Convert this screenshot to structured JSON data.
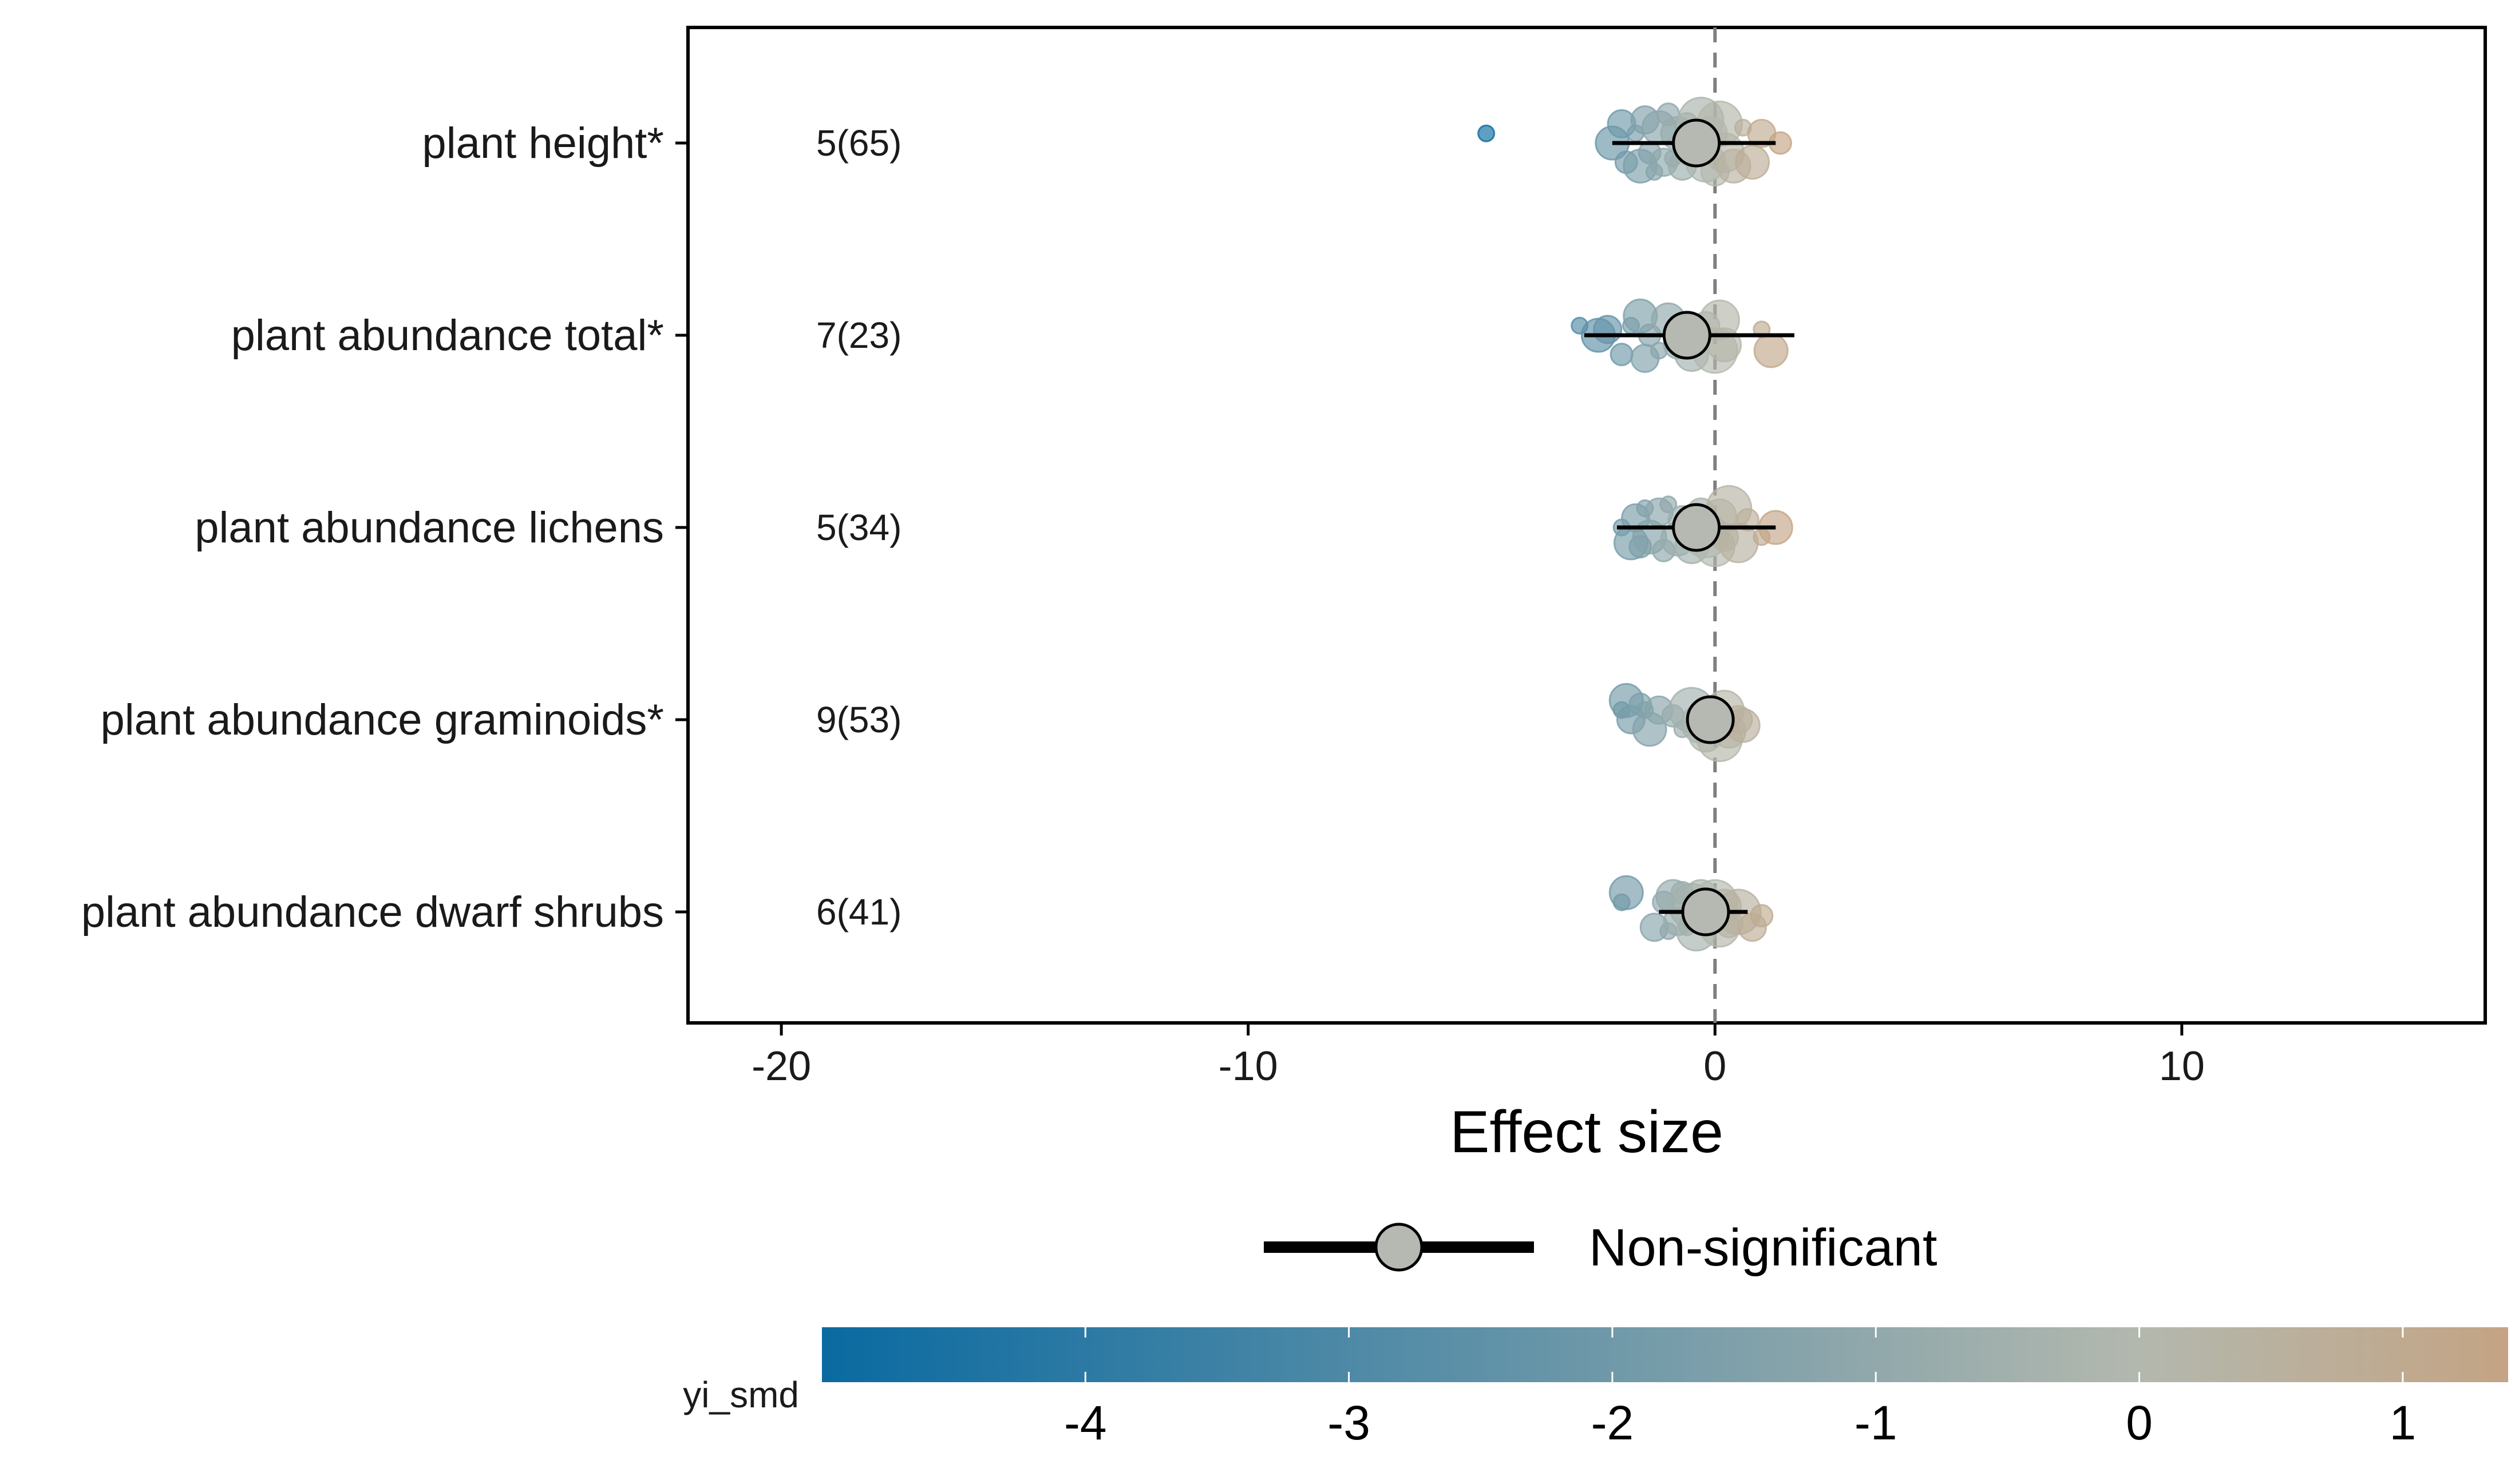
{
  "chart_data": {
    "type": "forest",
    "xlabel": "Effect size",
    "xlim": [
      -22,
      16.5
    ],
    "xticks": [
      -20,
      -10,
      0,
      10
    ],
    "reference_line": 0,
    "rows": [
      {
        "label": "plant height*",
        "count": "5(65)",
        "estimate": -0.4,
        "ci": [
          -2.2,
          1.3
        ],
        "points": [
          [
            -4.9,
            -0.05
          ],
          [
            -2.2,
            0.0
          ],
          [
            -2.0,
            -0.1
          ],
          [
            -1.9,
            0.1
          ],
          [
            -1.7,
            -0.05
          ],
          [
            -1.6,
            0.12
          ],
          [
            -1.5,
            -0.12
          ],
          [
            -1.4,
            0.05
          ],
          [
            -1.3,
            0.15
          ],
          [
            -1.2,
            -0.08
          ],
          [
            -1.1,
            0.1
          ],
          [
            -1.0,
            -0.15
          ],
          [
            -0.9,
            0.08
          ],
          [
            -0.8,
            -0.05
          ],
          [
            -0.7,
            0.12
          ],
          [
            -0.6,
            -0.1
          ],
          [
            -0.5,
            0.05
          ],
          [
            -0.3,
            -0.12
          ],
          [
            -0.2,
            0.1
          ],
          [
            -0.1,
            -0.05
          ],
          [
            0.0,
            0.15
          ],
          [
            0.1,
            -0.1
          ],
          [
            0.2,
            0.05
          ],
          [
            0.4,
            0.12
          ],
          [
            0.6,
            -0.08
          ],
          [
            0.8,
            0.1
          ],
          [
            1.0,
            -0.05
          ],
          [
            1.4,
            0.0
          ]
        ]
      },
      {
        "label": "plant abundance total*",
        "count": "7(23)",
        "estimate": -0.6,
        "ci": [
          -2.8,
          1.7
        ],
        "points": [
          [
            -2.9,
            -0.05
          ],
          [
            -2.5,
            0.0
          ],
          [
            -2.3,
            -0.03
          ],
          [
            -2.0,
            0.1
          ],
          [
            -1.8,
            -0.05
          ],
          [
            -1.6,
            -0.1
          ],
          [
            -1.5,
            0.12
          ],
          [
            -1.4,
            0.0
          ],
          [
            -1.2,
            0.08
          ],
          [
            -1.0,
            -0.08
          ],
          [
            -0.8,
            0.05
          ],
          [
            -0.5,
            0.1
          ],
          [
            -0.2,
            -0.05
          ],
          [
            0.0,
            0.08
          ],
          [
            0.1,
            -0.08
          ],
          [
            0.2,
            0.05
          ],
          [
            1.0,
            -0.03
          ],
          [
            1.2,
            0.08
          ]
        ]
      },
      {
        "label": "plant abundance lichens",
        "count": "5(34)",
        "estimate": -0.4,
        "ci": [
          -2.1,
          1.3
        ],
        "points": [
          [
            -2.0,
            0.0
          ],
          [
            -1.8,
            0.08
          ],
          [
            -1.7,
            -0.05
          ],
          [
            -1.6,
            0.1
          ],
          [
            -1.5,
            -0.1
          ],
          [
            -1.4,
            0.05
          ],
          [
            -1.2,
            -0.08
          ],
          [
            -1.1,
            0.12
          ],
          [
            -1.0,
            -0.12
          ],
          [
            -0.8,
            0.06
          ],
          [
            -0.7,
            -0.04
          ],
          [
            -0.5,
            0.1
          ],
          [
            -0.3,
            -0.08
          ],
          [
            -0.2,
            0.04
          ],
          [
            0.0,
            0.1
          ],
          [
            0.1,
            -0.06
          ],
          [
            0.2,
            0.05
          ],
          [
            0.3,
            -0.1
          ],
          [
            0.5,
            0.08
          ],
          [
            0.7,
            -0.04
          ],
          [
            1.0,
            0.05
          ],
          [
            1.3,
            0.0
          ]
        ]
      },
      {
        "label": "plant abundance graminoids*",
        "count": "9(53)",
        "estimate": -0.1,
        "ci": [
          -0.4,
          0.2
        ],
        "points": [
          [
            -2.0,
            -0.05
          ],
          [
            -1.9,
            -0.1
          ],
          [
            -1.8,
            0.0
          ],
          [
            -1.6,
            -0.08
          ],
          [
            -1.5,
            -0.05
          ],
          [
            -1.4,
            0.05
          ],
          [
            -1.2,
            -0.05
          ],
          [
            -0.9,
            -0.02
          ],
          [
            -0.7,
            0.05
          ],
          [
            -0.5,
            -0.05
          ],
          [
            -0.3,
            0.02
          ],
          [
            -0.2,
            0.08
          ],
          [
            0.0,
            -0.02
          ],
          [
            0.1,
            0.1
          ],
          [
            0.2,
            -0.05
          ],
          [
            0.3,
            0.06
          ],
          [
            0.5,
            0.0
          ],
          [
            0.6,
            0.03
          ]
        ]
      },
      {
        "label": "plant abundance dwarf shrubs",
        "count": "6(41)",
        "estimate": -0.2,
        "ci": [
          -1.2,
          0.7
        ],
        "points": [
          [
            -2.0,
            -0.05
          ],
          [
            -1.9,
            -0.1
          ],
          [
            -1.3,
            0.08
          ],
          [
            -1.1,
            -0.05
          ],
          [
            -1.0,
            0.1
          ],
          [
            -0.9,
            -0.08
          ],
          [
            -0.8,
            0.05
          ],
          [
            -0.7,
            -0.1
          ],
          [
            -0.6,
            0.08
          ],
          [
            -0.5,
            -0.03
          ],
          [
            -0.4,
            0.1
          ],
          [
            -0.3,
            -0.08
          ],
          [
            -0.2,
            0.05
          ],
          [
            0.0,
            -0.05
          ],
          [
            0.1,
            0.08
          ],
          [
            0.2,
            -0.03
          ],
          [
            0.3,
            0.06
          ],
          [
            0.5,
            0.0
          ],
          [
            0.8,
            0.08
          ],
          [
            1.0,
            0.02
          ]
        ]
      }
    ],
    "legend": {
      "label": "Non-significant"
    },
    "colorbar": {
      "title": "yi_smd",
      "range": [
        -5.0,
        1.4
      ],
      "ticks": [
        -4,
        -3,
        -2,
        -1,
        0,
        1
      ],
      "low_color": "#0a6aa1",
      "mid_color": "#b3b8ae",
      "high_color": "#c4a484"
    },
    "colors": {
      "estimate_fill": "#b5b9b2",
      "reference_line": "#7f7f7f",
      "axis": "#000000"
    }
  }
}
